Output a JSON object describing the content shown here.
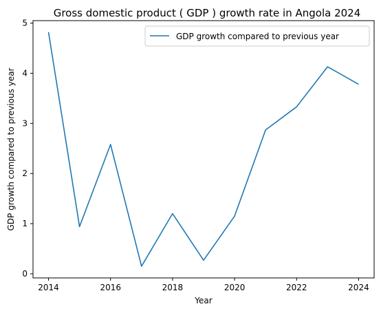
{
  "chart_data": {
    "type": "line",
    "title": "Gross domestic product ( GDP ) growth rate in Angola 2024",
    "xlabel": "Year",
    "ylabel": "GDP growth compared to previous year",
    "x": [
      2014,
      2015,
      2016,
      2017,
      2018,
      2019,
      2020,
      2021,
      2022,
      2023,
      2024
    ],
    "series": [
      {
        "name": "GDP growth compared to previous year",
        "values": [
          4.82,
          0.94,
          2.58,
          0.15,
          1.2,
          0.27,
          1.15,
          2.87,
          3.33,
          4.13,
          3.78
        ],
        "color": "#1f77b4"
      }
    ],
    "xticks": [
      "2014",
      "2016",
      "2018",
      "2020",
      "2022",
      "2024"
    ],
    "yticks": [
      "0",
      "1",
      "2",
      "3",
      "4",
      "5"
    ],
    "xlim": [
      2013.5,
      2024.5
    ],
    "ylim": [
      -0.083,
      5.05
    ],
    "grid": false,
    "legend_position": "top-right"
  }
}
